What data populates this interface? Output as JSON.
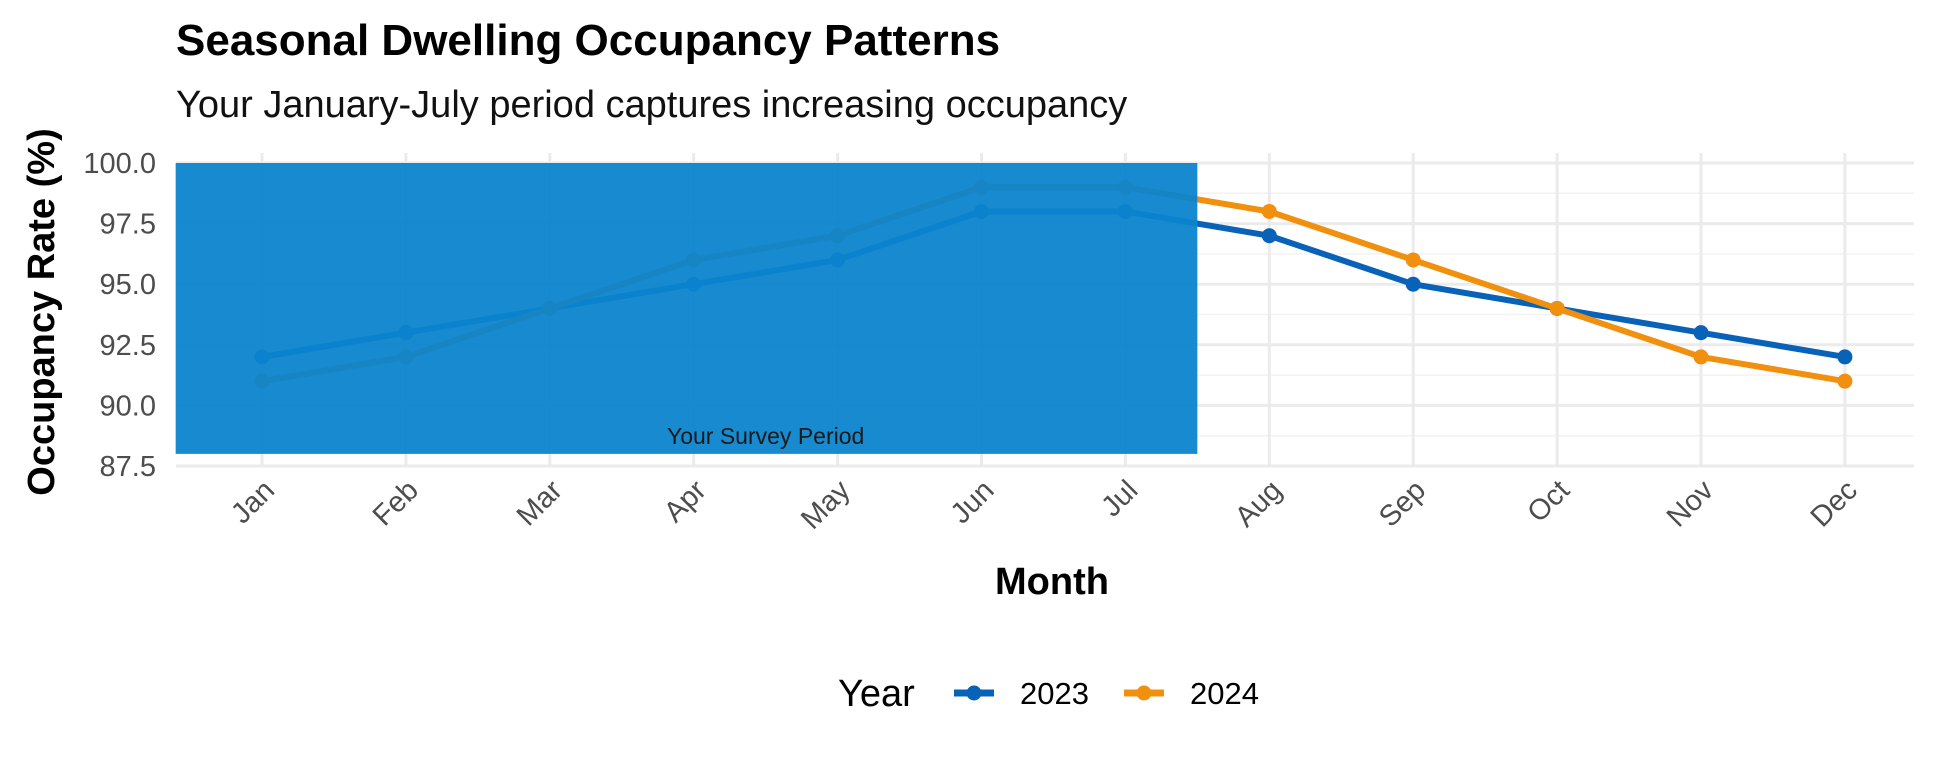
{
  "chart_data": {
    "type": "line",
    "title": "Seasonal Dwelling Occupancy Patterns",
    "subtitle": "Your January-July period captures increasing occupancy",
    "xlabel": "Month",
    "ylabel": "Occupancy Rate (%)",
    "categories": [
      "Jan",
      "Feb",
      "Mar",
      "Apr",
      "May",
      "Jun",
      "Jul",
      "Aug",
      "Sep",
      "Oct",
      "Nov",
      "Dec"
    ],
    "ylim": [
      87.5,
      100.0
    ],
    "yticks": [
      "87.5",
      "90.0",
      "92.5",
      "95.0",
      "97.5",
      "100.0"
    ],
    "grid": true,
    "legend": {
      "title": "Year",
      "position": "bottom"
    },
    "series": [
      {
        "name": "2023",
        "color": "#0862B8",
        "values": [
          92,
          93,
          94,
          95,
          96,
          98,
          98,
          97,
          95,
          94,
          93,
          92
        ]
      },
      {
        "name": "2024",
        "color": "#F0900E",
        "values": [
          91,
          92,
          94,
          96,
          97,
          99,
          99,
          98,
          96,
          94,
          92,
          91
        ]
      }
    ],
    "annotation": {
      "label": "Your Survey Period",
      "x_start": "Jan",
      "x_end": "Jul",
      "y_range": [
        88,
        100
      ],
      "color": "#0B84CE"
    }
  }
}
